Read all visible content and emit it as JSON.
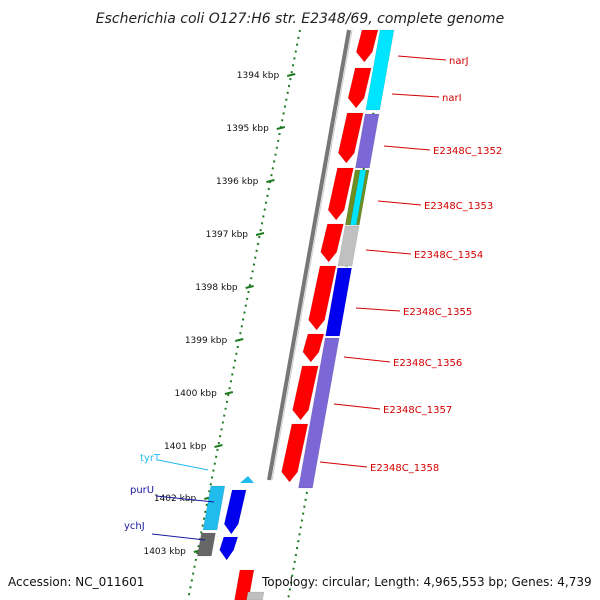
{
  "title": "Escherichia coli O127:H6 str. E2348/69, complete genome",
  "accession": "Accession: NC_011601",
  "topology": "Topology: circular; Length: 4,965,553 bp; Genes: 4,739",
  "kbp_ticks": [
    "1394 kbp",
    "1395 kbp",
    "1396 kbp",
    "1397 kbp",
    "1398 kbp",
    "1399 kbp",
    "1400 kbp",
    "1401 kbp",
    "1402 kbp",
    "1403 kbp"
  ],
  "gene_labels": [
    "narJ",
    "narI",
    "E2348C_1352",
    "E2348C_1353",
    "E2348C_1354",
    "E2348C_1355",
    "E2348C_1356",
    "E2348C_1357",
    "E2348C_1358"
  ],
  "left_labels": [
    {
      "text": "tyrT",
      "color": "#22bbee"
    },
    {
      "text": "purU",
      "color": "#1a1aa0"
    },
    {
      "text": "ychJ",
      "color": "#1a1aa0"
    }
  ],
  "colors": {
    "cds_forward": "#ff0000",
    "backbone": "#888888",
    "tick": "#1e7a1e",
    "label_red": "#d40000",
    "cyan": "#00e5ff",
    "purple": "#7b68d6",
    "blue": "#0000ee",
    "gray": "#c0c0c0",
    "dark_gray": "#666666",
    "olive": "#6b8e23"
  }
}
